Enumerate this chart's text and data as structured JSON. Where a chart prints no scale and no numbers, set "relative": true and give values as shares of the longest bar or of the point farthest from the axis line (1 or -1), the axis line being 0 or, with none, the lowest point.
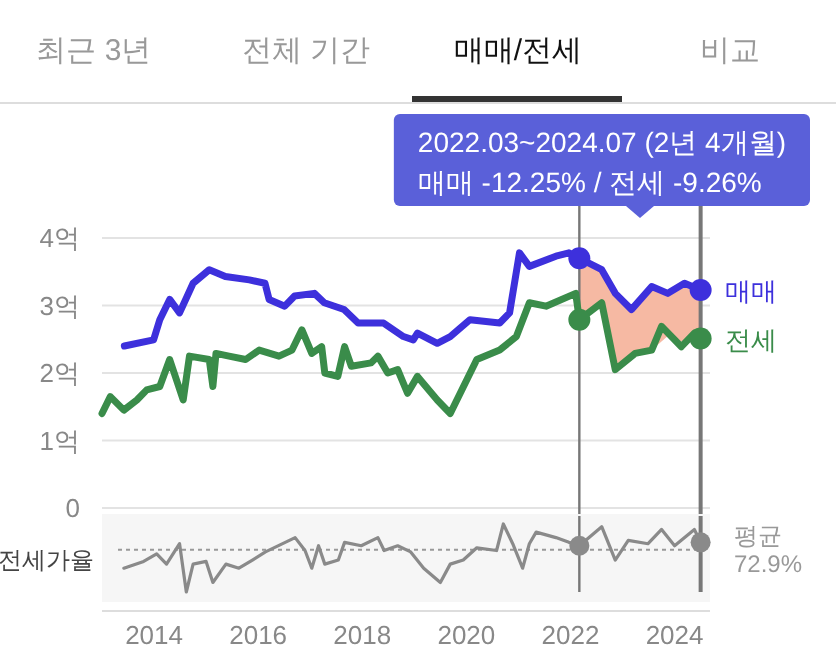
{
  "chart_data": [
    {
      "type": "line",
      "xlim": [
        2013.0,
        2024.68
      ],
      "ylim": [
        0,
        4
      ],
      "yticks": [
        0,
        {
          "value": 1,
          "label": "1억"
        },
        {
          "value": 2,
          "label": "2억"
        },
        {
          "value": 3,
          "label": "3억"
        },
        {
          "value": 4,
          "label": "4억"
        }
      ],
      "tick_labels": "y",
      "grid": "y",
      "annotations": [
        "최근 3년",
        "전체 기간",
        "매매/전세",
        "비교",
        "2022.03~2024.07 (2년 4개월)\n매매 -12.25%  /  전세 -9.26%"
      ],
      "ref_lines": [
        {
          "axis": "x",
          "value": 2022.17,
          "color": "#777777"
        },
        {
          "axis": "x",
          "value": 2024.5,
          "color": "#777777"
        }
      ],
      "series": [
        {
          "name": "매매",
          "color": "#3d30dc",
          "x": [
            2013.43,
            2013.99,
            2014.11,
            2014.3,
            2014.49,
            2014.75,
            2015.06,
            2015.37,
            2015.83,
            2016.13,
            2016.21,
            2016.51,
            2016.7,
            2017.08,
            2017.27,
            2017.65,
            2017.92,
            2018.41,
            2018.79,
            2018.98,
            2019.06,
            2019.44,
            2019.69,
            2020.07,
            2020.64,
            2020.83,
            2021.02,
            2021.21,
            2021.72,
            2021.97,
            2022.17,
            2022.6,
            2022.86,
            2023.17,
            2023.56,
            2023.87,
            2024.19,
            2024.5
          ],
          "values": [
            2.4,
            2.49,
            2.79,
            3.09,
            2.89,
            3.33,
            3.53,
            3.43,
            3.38,
            3.33,
            3.09,
            2.99,
            3.14,
            3.18,
            3.04,
            2.94,
            2.74,
            2.74,
            2.54,
            2.49,
            2.59,
            2.44,
            2.54,
            2.79,
            2.74,
            2.89,
            3.78,
            3.58,
            3.73,
            3.78,
            3.7,
            3.53,
            3.18,
            2.94,
            3.28,
            3.18,
            3.33,
            3.23
          ],
          "lower": [
            null,
            null,
            null,
            null,
            null,
            null,
            null,
            null,
            null,
            null,
            null,
            null,
            null,
            null,
            null,
            null,
            null,
            null,
            null,
            null,
            null,
            null,
            null,
            null,
            null,
            null,
            null,
            null,
            null,
            null,
            2.79,
            3.04,
            2.05,
            2.25,
            2.34,
            2.55,
            2.45,
            2.51
          ],
          "upper": [
            null,
            null,
            null,
            null,
            null,
            null,
            null,
            null,
            null,
            null,
            null,
            null,
            null,
            null,
            null,
            null,
            null,
            null,
            null,
            null,
            null,
            null,
            null,
            null,
            null,
            null,
            null,
            null,
            null,
            null,
            3.7,
            3.53,
            3.18,
            2.94,
            3.28,
            3.18,
            3.33,
            3.23
          ]
        },
        {
          "name": "전세",
          "color": "#3a8c4a",
          "x": [
            2013.0,
            2013.16,
            2013.42,
            2013.67,
            2013.86,
            2014.11,
            2014.3,
            2014.56,
            2014.68,
            2015.06,
            2015.13,
            2015.19,
            2015.44,
            2015.76,
            2016.02,
            2016.4,
            2016.65,
            2016.84,
            2017.03,
            2017.22,
            2017.28,
            2017.53,
            2017.66,
            2017.79,
            2018.17,
            2018.3,
            2018.49,
            2018.68,
            2018.87,
            2019.06,
            2019.44,
            2019.69,
            2020.2,
            2020.64,
            2020.96,
            2021.21,
            2021.53,
            2022.1,
            2022.17,
            2022.6,
            2022.86,
            2023.24,
            2023.56,
            2023.75,
            2024.13,
            2024.38,
            2024.5
          ],
          "values": [
            1.4,
            1.65,
            1.45,
            1.6,
            1.75,
            1.8,
            2.2,
            1.6,
            2.25,
            2.2,
            1.8,
            2.29,
            2.25,
            2.2,
            2.34,
            2.25,
            2.34,
            2.64,
            2.29,
            2.39,
            2.0,
            1.95,
            2.39,
            2.1,
            2.15,
            2.25,
            2.0,
            2.05,
            1.7,
            1.95,
            1.6,
            1.4,
            2.2,
            2.34,
            2.54,
            3.04,
            2.99,
            3.18,
            2.79,
            3.04,
            2.05,
            2.29,
            2.34,
            2.69,
            2.39,
            2.59,
            2.51
          ]
        }
      ]
    },
    {
      "type": "line",
      "relative": true,
      "xlim": [
        2013.0,
        2024.68
      ],
      "xticks": [
        2014,
        2016,
        2018,
        2020,
        2022,
        2024
      ],
      "tick_labels": "x",
      "ylabel": "전세가율",
      "ref_lines": [
        {
          "axis": "x",
          "value": 2022.17,
          "color": "#777777"
        },
        {
          "axis": "x",
          "value": 2024.5,
          "color": "#777777"
        },
        {
          "axis": "y",
          "value": 0.62,
          "label": "평균 72.9%",
          "color": "#999999",
          "line_style": "dotted"
        }
      ],
      "series": [
        {
          "color": "#8a8a8a",
          "x": [
            2013.42,
            2013.8,
            2014.05,
            2014.24,
            2014.49,
            2014.62,
            2014.75,
            2015.0,
            2015.13,
            2015.38,
            2015.63,
            2015.89,
            2016.14,
            2016.52,
            2016.71,
            2016.9,
            2017.03,
            2017.16,
            2017.28,
            2017.54,
            2017.66,
            2017.98,
            2018.3,
            2018.42,
            2018.68,
            2018.93,
            2019.18,
            2019.5,
            2019.69,
            2019.94,
            2020.2,
            2020.58,
            2020.71,
            2020.89,
            2021.08,
            2021.21,
            2021.34,
            2021.72,
            2021.97,
            2022.17,
            2022.6,
            2022.86,
            2023.11,
            2023.49,
            2023.75,
            2024.0,
            2024.38,
            2024.5
          ],
          "values": [
            0.35,
            0.45,
            0.56,
            0.41,
            0.71,
            0,
            0.41,
            0.45,
            0.14,
            0.41,
            0.35,
            0.47,
            0.59,
            0.73,
            0.8,
            0.61,
            0.35,
            0.68,
            0.41,
            0.47,
            0.73,
            0.68,
            0.8,
            0.61,
            0.68,
            0.59,
            0.35,
            0.14,
            0.41,
            0.47,
            0.65,
            0.61,
            1,
            0.71,
            0.35,
            0.71,
            0.88,
            0.8,
            0.73,
            0.68,
            0.96,
            0.47,
            0.76,
            0.71,
            0.92,
            0.68,
            0.92,
            0.73
          ]
        }
      ]
    }
  ]
}
